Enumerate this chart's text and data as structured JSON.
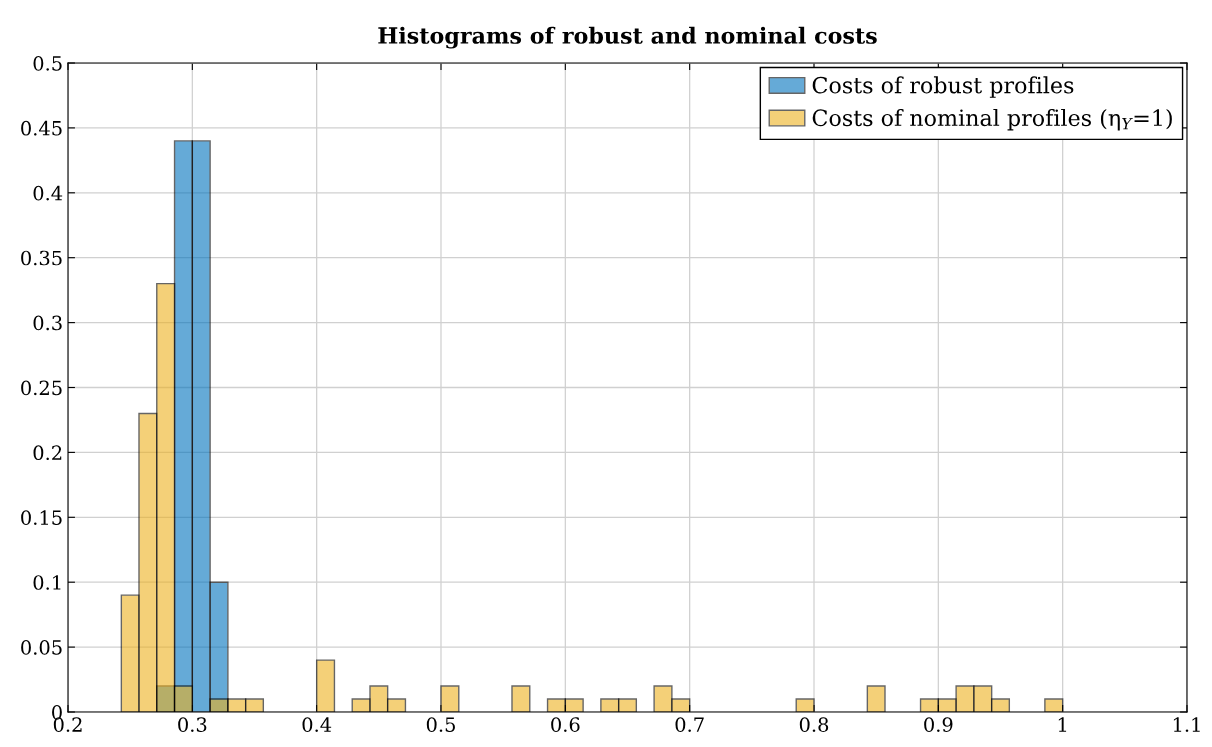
{
  "chart_data": {
    "type": "histogram",
    "title": "Histograms of robust and nominal costs",
    "bins": [
      0.2429,
      0.2571,
      0.2714,
      0.2857,
      0.3,
      0.3143,
      0.3286,
      0.3429,
      0.3571,
      0.3714,
      0.3857,
      0.4,
      0.4143,
      0.4286,
      0.4429,
      0.4571,
      0.4714,
      0.4857,
      0.5,
      0.5143,
      0.5286,
      0.5429,
      0.5571,
      0.5714,
      0.5857,
      0.6,
      0.6143,
      0.6286,
      0.6429,
      0.6571,
      0.6714,
      0.6857,
      0.7,
      0.7143,
      0.7286,
      0.7429,
      0.7571,
      0.7714,
      0.7857,
      0.8,
      0.8143,
      0.8286,
      0.8429,
      0.8571,
      0.8714,
      0.8857,
      0.9,
      0.9143,
      0.9286,
      0.9429,
      0.9571,
      0.9714,
      0.9857,
      1.0
    ],
    "series": [
      {
        "name": "Costs of robust profiles",
        "color": "#0072bd",
        "values": [
          0,
          0,
          0.02,
          0.44,
          0.44,
          0.1,
          0,
          0,
          0,
          0,
          0,
          0,
          0,
          0,
          0,
          0,
          0,
          0,
          0,
          0,
          0,
          0,
          0,
          0,
          0,
          0,
          0,
          0,
          0,
          0,
          0,
          0,
          0,
          0,
          0,
          0,
          0,
          0,
          0,
          0,
          0,
          0,
          0,
          0,
          0,
          0,
          0,
          0,
          0,
          0,
          0,
          0,
          0
        ]
      },
      {
        "name": "Costs of nominal profiles (η$_{Y}$=1)",
        "color": "#edb120",
        "values": [
          0.09,
          0.23,
          0.33,
          0.02,
          0,
          0.01,
          0.01,
          0.01,
          0,
          0,
          0,
          0.04,
          0,
          0.01,
          0.02,
          0.01,
          0,
          0,
          0.02,
          0,
          0,
          0,
          0.02,
          0,
          0.01,
          0.01,
          0,
          0.01,
          0.01,
          0,
          0.02,
          0.01,
          0,
          0,
          0,
          0,
          0,
          0,
          0.01,
          0,
          0,
          0,
          0.02,
          0,
          0,
          0.01,
          0.01,
          0.02,
          0.02,
          0.01,
          0,
          0,
          0.01
        ]
      }
    ],
    "xlim": [
      0.2,
      1.1
    ],
    "xticks": [
      0.2,
      0.3,
      0.4,
      0.5,
      0.6,
      0.7,
      0.8,
      0.9,
      1,
      1.1
    ],
    "ylim": [
      0,
      0.5
    ],
    "yticks": [
      0,
      0.05,
      0.1,
      0.15,
      0.2,
      0.25,
      0.3,
      0.35,
      0.4,
      0.45,
      0.5
    ],
    "grid": true,
    "legend": "top right"
  }
}
